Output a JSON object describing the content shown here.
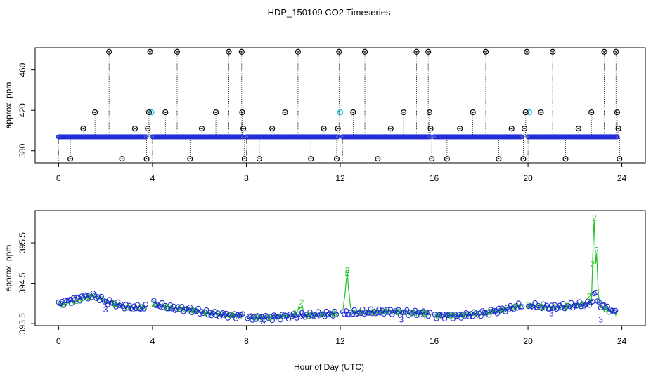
{
  "title": "HDP_150109  CO2 Timeseries",
  "xlabel": "Hour of Day (UTC)",
  "colors": {
    "frame": "#000000",
    "outlier_circle": "#000000",
    "series_blue": "#1f2bd6",
    "series_cyan": "#2ec4e6",
    "series_green": "#22c322",
    "drop_line": "#000000"
  },
  "chart_data": [
    {
      "type": "scatter",
      "panel": "top",
      "title": "",
      "xlabel": "",
      "ylabel": "approx. ppm",
      "xlim": [
        -1,
        25
      ],
      "ylim": [
        368,
        482
      ],
      "xticks": [
        0,
        4,
        8,
        12,
        16,
        20,
        24
      ],
      "yticks": [
        380,
        420,
        460
      ],
      "baseline_ppm": 393.8,
      "baseline_segments": [
        [
          0,
          3.75
        ],
        [
          4.0,
          7.85
        ],
        [
          8.0,
          11.9
        ],
        [
          12.1,
          15.85
        ],
        [
          16.0,
          19.75
        ],
        [
          20.0,
          23.8
        ]
      ],
      "cyan_points": [
        [
          3.95,
          418
        ],
        [
          12.0,
          418
        ],
        [
          20.05,
          418
        ]
      ],
      "outliers": [
        [
          0.5,
          372
        ],
        [
          1.05,
          402
        ],
        [
          1.55,
          418
        ],
        [
          2.15,
          478
        ],
        [
          2.7,
          372
        ],
        [
          3.25,
          402
        ],
        [
          3.75,
          372
        ],
        [
          3.8,
          402
        ],
        [
          3.85,
          418
        ],
        [
          3.9,
          478
        ],
        [
          4.55,
          418
        ],
        [
          5.05,
          478
        ],
        [
          5.6,
          372
        ],
        [
          6.1,
          402
        ],
        [
          6.7,
          418
        ],
        [
          7.25,
          478
        ],
        [
          7.8,
          478
        ],
        [
          7.82,
          418
        ],
        [
          7.87,
          402
        ],
        [
          7.92,
          372
        ],
        [
          8.55,
          372
        ],
        [
          9.1,
          402
        ],
        [
          9.65,
          418
        ],
        [
          10.2,
          478
        ],
        [
          10.75,
          372
        ],
        [
          11.3,
          402
        ],
        [
          11.85,
          372
        ],
        [
          11.9,
          402
        ],
        [
          11.95,
          478
        ],
        [
          12.55,
          418
        ],
        [
          13.05,
          478
        ],
        [
          13.6,
          372
        ],
        [
          14.15,
          402
        ],
        [
          14.7,
          418
        ],
        [
          15.25,
          478
        ],
        [
          15.75,
          478
        ],
        [
          15.8,
          418
        ],
        [
          15.85,
          402
        ],
        [
          15.9,
          372
        ],
        [
          16.55,
          372
        ],
        [
          17.1,
          402
        ],
        [
          17.65,
          418
        ],
        [
          18.2,
          478
        ],
        [
          18.75,
          372
        ],
        [
          19.3,
          402
        ],
        [
          19.8,
          372
        ],
        [
          19.85,
          402
        ],
        [
          19.9,
          418
        ],
        [
          19.95,
          478
        ],
        [
          20.55,
          418
        ],
        [
          21.05,
          478
        ],
        [
          21.6,
          372
        ],
        [
          22.15,
          402
        ],
        [
          22.7,
          418
        ],
        [
          23.25,
          478
        ],
        [
          23.75,
          478
        ],
        [
          23.8,
          418
        ],
        [
          23.85,
          402
        ],
        [
          23.9,
          372
        ]
      ]
    },
    {
      "type": "line",
      "panel": "bottom",
      "title": "",
      "xlabel": "Hour of Day (UTC)",
      "ylabel": "approx. ppm",
      "xlim": [
        -1,
        25
      ],
      "ylim": [
        393.45,
        396.3
      ],
      "xticks": [
        0,
        4,
        8,
        12,
        16,
        20,
        24
      ],
      "yticks": [
        393.5,
        394.5,
        395.5
      ],
      "series": [
        {
          "name": "blue (o)",
          "symbol": "o",
          "points": [
            [
              0,
              394.0
            ],
            [
              1,
              394.15
            ],
            [
              1.5,
              394.2
            ],
            [
              2,
              394.05
            ],
            [
              3,
              393.9
            ],
            [
              3.75,
              393.9
            ],
            [
              4.0,
              394.0
            ],
            [
              4.7,
              393.9
            ],
            [
              5.5,
              393.85
            ],
            [
              6.5,
              393.75
            ],
            [
              7.5,
              393.7
            ],
            [
              7.85,
              393.7
            ],
            [
              8.0,
              393.65
            ],
            [
              9,
              393.65
            ],
            [
              10,
              393.7
            ],
            [
              11,
              393.72
            ],
            [
              11.9,
              393.75
            ],
            [
              12.1,
              393.75
            ],
            [
              13,
              393.78
            ],
            [
              14,
              393.8
            ],
            [
              15,
              393.77
            ],
            [
              15.85,
              393.75
            ],
            [
              16.0,
              393.7
            ],
            [
              17,
              393.7
            ],
            [
              18,
              393.75
            ],
            [
              19,
              393.85
            ],
            [
              19.75,
              393.95
            ],
            [
              20.0,
              393.95
            ],
            [
              21,
              393.9
            ],
            [
              22,
              393.95
            ],
            [
              22.7,
              394.0
            ],
            [
              22.85,
              394.3
            ],
            [
              23,
              394.0
            ],
            [
              23.8,
              393.75
            ]
          ]
        },
        {
          "name": "green (2)",
          "symbol": "2",
          "points": [
            [
              0,
              393.95
            ],
            [
              1,
              394.1
            ],
            [
              1.5,
              394.2
            ],
            [
              2,
              394.05
            ],
            [
              3,
              393.9
            ],
            [
              3.75,
              393.9
            ],
            [
              4.0,
              394.0
            ],
            [
              4.7,
              393.9
            ],
            [
              5.5,
              393.85
            ],
            [
              6.5,
              393.75
            ],
            [
              7.5,
              393.7
            ],
            [
              7.85,
              393.7
            ],
            [
              8.0,
              393.65
            ],
            [
              9,
              393.65
            ],
            [
              10,
              393.7
            ],
            [
              10.35,
              393.95
            ],
            [
              10.5,
              393.7
            ],
            [
              11,
              393.72
            ],
            [
              11.9,
              393.75
            ],
            [
              12.1,
              393.75
            ],
            [
              12.3,
              394.75
            ],
            [
              12.45,
              393.8
            ],
            [
              13,
              393.78
            ],
            [
              14,
              393.8
            ],
            [
              15,
              393.77
            ],
            [
              15.85,
              393.75
            ],
            [
              16.0,
              393.7
            ],
            [
              17,
              393.7
            ],
            [
              18,
              393.75
            ],
            [
              19,
              393.85
            ],
            [
              19.75,
              393.95
            ],
            [
              20.0,
              393.95
            ],
            [
              21,
              393.9
            ],
            [
              22,
              393.95
            ],
            [
              22.7,
              394.0
            ],
            [
              22.78,
              395.55
            ],
            [
              22.82,
              396.05
            ],
            [
              22.88,
              395.0
            ],
            [
              22.92,
              395.25
            ],
            [
              23.0,
              394.2
            ],
            [
              23.1,
              393.9
            ],
            [
              23.8,
              393.75
            ]
          ]
        }
      ],
      "text_markers": [
        {
          "label": "3",
          "x": 2.0,
          "y": 393.85
        },
        {
          "label": "3",
          "x": 8.7,
          "y": 393.55
        },
        {
          "label": "3",
          "x": 14.6,
          "y": 393.6
        },
        {
          "label": "3",
          "x": 21.0,
          "y": 393.75
        },
        {
          "label": "3",
          "x": 23.1,
          "y": 393.6
        }
      ]
    }
  ]
}
